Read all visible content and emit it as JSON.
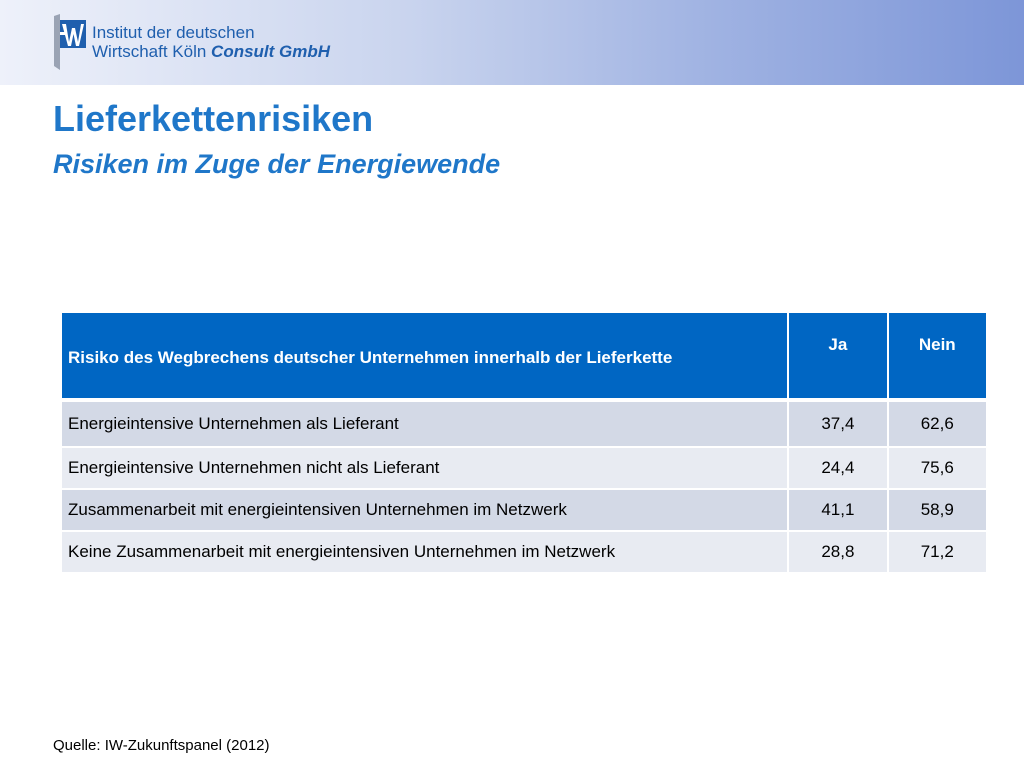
{
  "header": {
    "logo_line1": "Institut der deutschen",
    "logo_line2_a": "Wirtschaft Köln ",
    "logo_line2_b": "Consult GmbH"
  },
  "title": "Lieferkettenrisiken",
  "subtitle": "Risiken im Zuge der Energiewende",
  "table": {
    "headers": [
      "Risiko des Wegbrechens deutscher Unternehmen innerhalb der Lieferkette",
      "Ja",
      "Nein"
    ],
    "rows": [
      {
        "label": "Energieintensive Unternehmen als Lieferant",
        "ja": "37,4",
        "nein": "62,6"
      },
      {
        "label": "Energieintensive Unternehmen nicht als Lieferant",
        "ja": "24,4",
        "nein": "75,6"
      },
      {
        "label": "Zusammenarbeit mit energieintensiven Unternehmen im Netzwerk",
        "ja": "41,1",
        "nein": "58,9"
      },
      {
        "label": "Keine Zusammenarbeit mit energieintensiven Unternehmen im Netzwerk",
        "ja": "28,8",
        "nein": "71,2"
      }
    ]
  },
  "source": "Quelle: IW-Zukunftspanel (2012)",
  "colors": {
    "title": "#1f77c9",
    "table_header": "#0066c3",
    "row_odd": "#d3d9e6",
    "row_even": "#e8ebf2"
  }
}
